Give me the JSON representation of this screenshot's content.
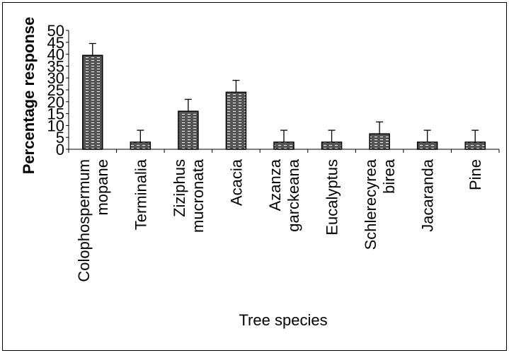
{
  "chart_data": {
    "type": "bar",
    "title": "",
    "xlabel": "Tree species",
    "ylabel": "Percentage response",
    "ylim": [
      0,
      50
    ],
    "yticks": [
      "0",
      "5",
      "10",
      "15",
      "20",
      "25",
      "30",
      "35",
      "40",
      "45",
      "50"
    ],
    "grid": false,
    "categories": [
      [
        "Colophospermum",
        "mopane"
      ],
      [
        "Terminalia"
      ],
      [
        "Ziziphus",
        "mucronata"
      ],
      [
        "Acacia"
      ],
      [
        "Azanza",
        "garckeana"
      ],
      [
        "Eucalyptus"
      ],
      [
        "Schlerecyrea",
        "birea"
      ],
      [
        "Jacaranda"
      ],
      [
        "Pine"
      ]
    ],
    "values": [
      39.5,
      3,
      16,
      24,
      3,
      3,
      6.5,
      3,
      3
    ],
    "error": [
      5,
      5,
      5,
      5,
      5,
      5,
      5,
      5,
      5
    ],
    "bar_color": "#555555",
    "bar_pattern_color": "#ffffff"
  }
}
